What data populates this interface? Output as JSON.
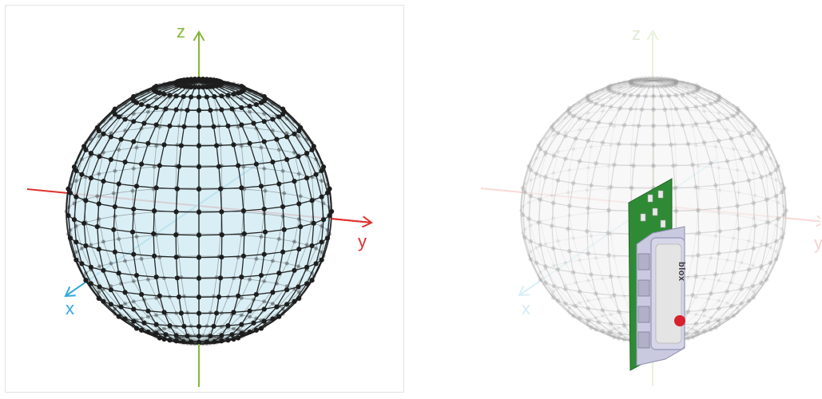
{
  "left": {
    "labels": {
      "z": "z",
      "y": "y",
      "x": "x"
    },
    "colors": {
      "z": "#86b83a",
      "y": "#e0312d",
      "x": "#35a8dd",
      "sphere_fill": "#d3ecf3",
      "mesh": "#1e1e1e"
    }
  },
  "right": {
    "labels": {
      "z": "z",
      "y": "y",
      "x": "x"
    },
    "module_brand": "blox",
    "colors": {
      "pcb": "#2f8a36",
      "shield": "#d6d6e8",
      "logo": "#d8202e",
      "faded": "#cfcfcf"
    }
  }
}
